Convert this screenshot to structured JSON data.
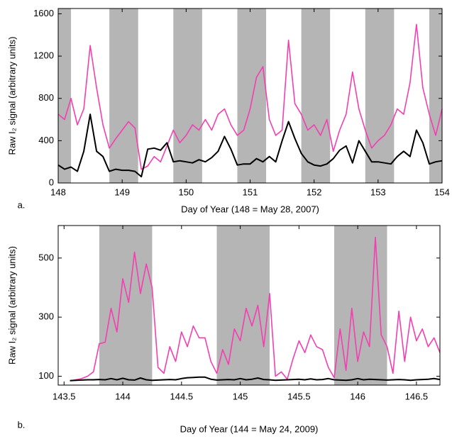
{
  "chart_data": [
    {
      "type": "line",
      "panel_label": "a.",
      "xlabel": "Day of Year (148 = May 28, 2007)",
      "ylabel": "Raw I₂ signal (arbitrary units)",
      "xlim": [
        148,
        154
      ],
      "xticks": [
        148,
        149,
        150,
        151,
        152,
        153,
        154
      ],
      "ylim": [
        0,
        1650
      ],
      "yticks": [
        0,
        400,
        800,
        1200,
        1600
      ],
      "bands": [
        [
          148,
          148.2
        ],
        [
          148.8,
          149.25
        ],
        [
          149.8,
          150.25
        ],
        [
          150.8,
          151.25
        ],
        [
          151.8,
          152.25
        ],
        [
          152.8,
          153.25
        ],
        [
          153.8,
          154
        ]
      ],
      "band_color": "#b5b5b5",
      "x": [
        148.0,
        148.1,
        148.2,
        148.3,
        148.4,
        148.5,
        148.6,
        148.7,
        148.8,
        148.9,
        149.0,
        149.1,
        149.2,
        149.3,
        149.4,
        149.5,
        149.6,
        149.7,
        149.8,
        149.9,
        150.0,
        150.1,
        150.2,
        150.3,
        150.4,
        150.5,
        150.6,
        150.7,
        150.8,
        150.9,
        151.0,
        151.1,
        151.2,
        151.3,
        151.4,
        151.5,
        151.6,
        151.7,
        151.8,
        151.9,
        152.0,
        152.1,
        152.2,
        152.3,
        152.4,
        152.5,
        152.6,
        152.7,
        152.8,
        152.9,
        153.0,
        153.1,
        153.2,
        153.3,
        153.4,
        153.5,
        153.6,
        153.7,
        153.8,
        153.9,
        154.0
      ],
      "series": [
        {
          "color": "#f23fb2",
          "values": [
            650,
            600,
            800,
            550,
            700,
            1300,
            900,
            550,
            330,
            420,
            500,
            580,
            520,
            130,
            160,
            250,
            200,
            350,
            500,
            380,
            450,
            550,
            500,
            600,
            500,
            650,
            700,
            550,
            450,
            500,
            700,
            1000,
            1100,
            600,
            450,
            500,
            1350,
            750,
            650,
            500,
            550,
            450,
            600,
            300,
            500,
            650,
            1050,
            700,
            500,
            330,
            400,
            450,
            550,
            700,
            650,
            950,
            1500,
            900,
            650,
            450,
            700
          ]
        },
        {
          "color": "#000000",
          "values": [
            170,
            130,
            150,
            110,
            300,
            650,
            300,
            250,
            110,
            130,
            120,
            120,
            110,
            60,
            320,
            330,
            310,
            380,
            200,
            210,
            200,
            190,
            220,
            200,
            240,
            300,
            440,
            320,
            170,
            180,
            180,
            230,
            200,
            250,
            200,
            400,
            580,
            420,
            280,
            200,
            170,
            160,
            180,
            230,
            310,
            350,
            190,
            400,
            300,
            200,
            200,
            190,
            180,
            250,
            300,
            250,
            500,
            380,
            180,
            200,
            210
          ]
        }
      ]
    },
    {
      "type": "line",
      "panel_label": "b.",
      "xlabel": "Day of Year (144 = May 24, 2009)",
      "ylabel": "Raw I₂ signal (arbitrary units)",
      "xlim": [
        143.45,
        146.7
      ],
      "xticks": [
        143.5,
        144,
        144.5,
        145,
        145.5,
        146,
        146.5
      ],
      "ylim": [
        70,
        610
      ],
      "yticks": [
        100,
        300,
        500
      ],
      "bands": [
        [
          143.8,
          144.25
        ],
        [
          144.8,
          145.25
        ],
        [
          145.8,
          146.25
        ]
      ],
      "band_color": "#b5b5b5",
      "x": [
        143.55,
        143.6,
        143.65,
        143.7,
        143.75,
        143.8,
        143.85,
        143.9,
        143.95,
        144.0,
        144.05,
        144.1,
        144.15,
        144.2,
        144.25,
        144.3,
        144.35,
        144.4,
        144.45,
        144.5,
        144.55,
        144.6,
        144.65,
        144.7,
        144.75,
        144.8,
        144.85,
        144.9,
        144.95,
        145.0,
        145.05,
        145.1,
        145.15,
        145.2,
        145.25,
        145.3,
        145.35,
        145.4,
        145.45,
        145.5,
        145.55,
        145.6,
        145.65,
        145.7,
        145.75,
        145.8,
        145.85,
        145.9,
        145.95,
        146.0,
        146.05,
        146.1,
        146.15,
        146.2,
        146.25,
        146.3,
        146.35,
        146.4,
        146.45,
        146.5,
        146.55,
        146.6,
        146.65,
        146.7
      ],
      "series": [
        {
          "color": "#f23fb2",
          "values": [
            85,
            88,
            92,
            100,
            115,
            210,
            215,
            330,
            250,
            430,
            350,
            520,
            380,
            480,
            400,
            130,
            110,
            200,
            150,
            250,
            200,
            270,
            230,
            230,
            150,
            110,
            190,
            140,
            260,
            220,
            330,
            270,
            340,
            200,
            380,
            100,
            115,
            90,
            160,
            220,
            180,
            240,
            200,
            190,
            130,
            95,
            260,
            120,
            330,
            150,
            250,
            200,
            570,
            240,
            200,
            110,
            320,
            150,
            300,
            220,
            260,
            200,
            230,
            180
          ]
        },
        {
          "color": "#000000",
          "values": [
            85,
            86,
            87,
            88,
            88,
            89,
            88,
            92,
            88,
            93,
            88,
            87,
            94,
            88,
            86,
            87,
            88,
            89,
            88,
            92,
            95,
            96,
            97,
            97,
            90,
            87,
            88,
            89,
            88,
            92,
            88,
            90,
            94,
            89,
            88,
            86,
            87,
            88,
            89,
            90,
            88,
            91,
            88,
            89,
            92,
            88,
            87,
            86,
            88,
            92,
            88,
            90,
            89,
            88,
            87,
            88,
            89,
            88,
            86,
            88,
            89,
            90,
            92,
            89
          ]
        }
      ]
    }
  ]
}
